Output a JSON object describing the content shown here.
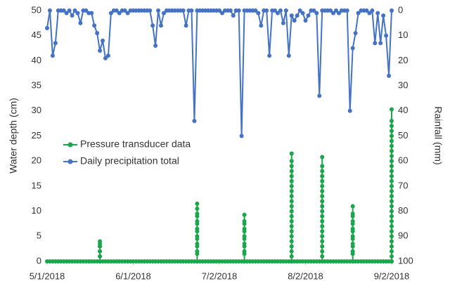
{
  "chart_data": {
    "type": "line",
    "xlabel": null,
    "ylabel": "Water depth (cm)",
    "y2label": "Rainfall (mm)",
    "xlim": [
      "5/1/2018",
      "9/2/2018"
    ],
    "xticks": [
      "5/1/2018",
      "6/1/2018",
      "7/2/2018",
      "8/2/2018",
      "9/2/2018"
    ],
    "ylim": [
      0,
      50
    ],
    "yticks": [
      0,
      5,
      10,
      15,
      20,
      25,
      30,
      35,
      40,
      45,
      50
    ],
    "y2lim": [
      100,
      0
    ],
    "y2ticks": [
      0,
      10,
      20,
      30,
      40,
      50,
      60,
      70,
      80,
      90,
      100
    ],
    "grid": false,
    "legend": "center-left",
    "series": [
      {
        "name": "Pressure transducer data",
        "color": "#1aa64a",
        "axis": "y",
        "x": [
          "5/1/2018",
          "5/2/2018",
          "5/3/2018",
          "5/4/2018",
          "5/5/2018",
          "5/6/2018",
          "5/7/2018",
          "5/8/2018",
          "5/9/2018",
          "5/10/2018",
          "5/11/2018",
          "5/12/2018",
          "5/13/2018",
          "5/14/2018",
          "5/15/2018",
          "5/16/2018",
          "5/17/2018",
          "5/18/2018",
          "5/19/2018",
          "5/20/2018",
          "5/20/2018",
          "5/20/2018",
          "5/20/2018",
          "5/20/2018",
          "5/20/2018",
          "5/20/2018",
          "5/20/2018",
          "5/20/2018",
          "5/20/2018",
          "5/21/2018",
          "5/22/2018",
          "5/23/2018",
          "5/24/2018",
          "5/25/2018",
          "5/26/2018",
          "5/27/2018",
          "5/28/2018",
          "5/29/2018",
          "5/30/2018",
          "5/31/2018",
          "6/1/2018",
          "6/2/2018",
          "6/3/2018",
          "6/4/2018",
          "6/5/2018",
          "6/6/2018",
          "6/7/2018",
          "6/8/2018",
          "6/9/2018",
          "6/10/2018",
          "6/11/2018",
          "6/12/2018",
          "6/13/2018",
          "6/14/2018",
          "6/15/2018",
          "6/16/2018",
          "6/17/2018",
          "6/18/2018",
          "6/19/2018",
          "6/20/2018",
          "6/21/2018",
          "6/22/2018",
          "6/23/2018",
          "6/24/2018",
          "6/24/2018",
          "6/24/2018",
          "6/24/2018",
          "6/24/2018",
          "6/24/2018",
          "6/24/2018",
          "6/24/2018",
          "6/24/2018",
          "6/24/2018",
          "6/24/2018",
          "6/24/2018",
          "6/24/2018",
          "6/24/2018",
          "6/24/2018",
          "6/24/2018",
          "6/25/2018",
          "6/26/2018",
          "6/27/2018",
          "6/28/2018",
          "6/29/2018",
          "6/30/2018",
          "7/1/2018",
          "7/2/2018",
          "7/3/2018",
          "7/4/2018",
          "7/5/2018",
          "7/6/2018",
          "7/7/2018",
          "7/8/2018",
          "7/9/2018",
          "7/10/2018",
          "7/11/2018",
          "7/11/2018",
          "7/11/2018",
          "7/11/2018",
          "7/11/2018",
          "7/11/2018",
          "7/11/2018",
          "7/11/2018",
          "7/11/2018",
          "7/11/2018",
          "7/11/2018",
          "7/11/2018",
          "7/11/2018",
          "7/12/2018",
          "7/13/2018",
          "7/14/2018",
          "7/15/2018",
          "7/16/2018",
          "7/17/2018",
          "7/18/2018",
          "7/19/2018",
          "7/20/2018",
          "7/21/2018",
          "7/22/2018",
          "7/23/2018",
          "7/24/2018",
          "7/25/2018",
          "7/26/2018",
          "7/27/2018",
          "7/28/2018",
          "7/28/2018",
          "7/28/2018",
          "7/28/2018",
          "7/28/2018",
          "7/28/2018",
          "7/28/2018",
          "7/28/2018",
          "7/28/2018",
          "7/28/2018",
          "7/28/2018",
          "7/28/2018",
          "7/28/2018",
          "7/28/2018",
          "7/28/2018",
          "7/28/2018",
          "7/28/2018",
          "7/28/2018",
          "7/28/2018",
          "7/28/2018",
          "7/28/2018",
          "7/28/2018",
          "7/28/2018",
          "7/29/2018",
          "7/30/2018",
          "7/31/2018",
          "8/1/2018",
          "8/2/2018",
          "8/3/2018",
          "8/4/2018",
          "8/5/2018",
          "8/6/2018",
          "8/7/2018",
          "8/8/2018",
          "8/8/2018",
          "8/8/2018",
          "8/8/2018",
          "8/8/2018",
          "8/8/2018",
          "8/8/2018",
          "8/8/2018",
          "8/8/2018",
          "8/8/2018",
          "8/8/2018",
          "8/8/2018",
          "8/8/2018",
          "8/8/2018",
          "8/8/2018",
          "8/8/2018",
          "8/8/2018",
          "8/8/2018",
          "8/8/2018",
          "8/8/2018",
          "8/8/2018",
          "8/8/2018",
          "8/9/2018",
          "8/10/2018",
          "8/11/2018",
          "8/12/2018",
          "8/13/2018",
          "8/14/2018",
          "8/15/2018",
          "8/16/2018",
          "8/17/2018",
          "8/18/2018",
          "8/19/2018",
          "8/19/2018",
          "8/19/2018",
          "8/19/2018",
          "8/19/2018",
          "8/19/2018",
          "8/19/2018",
          "8/19/2018",
          "8/19/2018",
          "8/19/2018",
          "8/19/2018",
          "8/19/2018",
          "8/19/2018",
          "8/19/2018",
          "8/19/2018",
          "8/20/2018",
          "8/21/2018",
          "8/22/2018",
          "8/23/2018",
          "8/24/2018",
          "8/25/2018",
          "8/26/2018",
          "8/27/2018",
          "8/28/2018",
          "8/29/2018",
          "8/30/2018",
          "8/31/2018",
          "9/1/2018",
          "9/2/2018",
          "9/2/2018",
          "9/2/2018",
          "9/2/2018",
          "9/2/2018",
          "9/2/2018",
          "9/2/2018",
          "9/2/2018",
          "9/2/2018",
          "9/2/2018",
          "9/2/2018",
          "9/2/2018",
          "9/2/2018",
          "9/2/2018",
          "9/2/2018",
          "9/2/2018",
          "9/2/2018",
          "9/2/2018",
          "9/2/2018",
          "9/2/2018",
          "9/2/2018",
          "9/2/2018",
          "9/2/2018",
          "9/2/2018",
          "9/2/2018",
          "9/2/2018",
          "9/2/2018",
          "9/2/2018",
          "9/2/2018",
          "9/2/2018",
          "9/2/2018"
        ],
        "values": [
          0,
          0,
          0,
          0,
          0,
          0,
          0,
          0,
          0,
          0,
          0,
          0,
          0,
          0,
          0,
          0,
          0,
          0,
          0,
          0,
          1,
          2,
          3,
          4,
          3.5,
          3,
          2,
          1,
          0,
          0,
          0,
          0,
          0,
          0,
          0,
          0,
          0,
          0,
          0,
          0,
          0,
          0,
          0,
          0,
          0,
          0,
          0,
          0,
          0,
          0,
          0,
          0,
          0,
          0,
          0,
          0,
          0,
          0,
          0,
          0,
          0,
          0,
          0,
          0,
          1.5,
          3,
          4.5,
          6,
          7.5,
          9,
          10.5,
          11.5,
          9.5,
          8,
          6.5,
          5,
          3.5,
          2,
          0,
          0,
          0,
          0,
          0,
          0,
          0,
          0,
          0,
          0,
          0,
          0,
          0,
          0,
          0,
          0,
          0,
          0,
          1.5,
          3,
          4.5,
          6,
          7.5,
          9.3,
          8,
          6.5,
          5,
          3.5,
          2,
          0,
          0,
          0,
          0,
          0,
          0,
          0,
          0,
          0,
          0,
          0,
          0,
          0,
          0,
          0,
          0,
          0,
          0,
          2,
          4,
          6,
          8,
          10,
          12,
          14,
          16,
          18,
          20,
          21.5,
          19,
          17,
          15,
          13,
          11,
          9,
          7,
          5,
          3,
          1,
          0,
          0,
          0,
          0,
          0,
          0,
          0,
          0,
          0,
          0,
          0,
          0,
          2,
          4,
          6,
          8,
          10,
          12,
          14,
          16,
          18,
          20.8,
          19,
          17,
          15,
          13,
          11,
          9,
          7,
          5,
          3,
          1,
          0,
          0,
          0,
          0,
          0,
          0,
          0,
          0,
          0,
          0,
          0,
          0,
          1.5,
          3,
          4.5,
          6,
          7.5,
          9,
          11,
          9.5,
          8,
          6.5,
          5,
          3.5,
          2,
          0,
          0,
          0,
          0,
          0,
          0,
          0,
          0,
          0,
          0,
          0,
          0,
          0,
          0,
          0,
          2,
          4,
          6,
          8,
          10,
          12,
          14,
          16,
          18,
          20,
          22,
          24,
          26,
          28,
          30.3,
          27,
          25,
          23,
          21,
          19,
          17,
          15,
          13,
          11,
          9,
          7,
          5,
          3,
          1,
          0
        ]
      },
      {
        "name": "Daily precipitation total",
        "color": "#4472c4",
        "axis": "y2",
        "x": [
          "5/1/2018",
          "5/2/2018",
          "5/3/2018",
          "5/4/2018",
          "5/5/2018",
          "5/6/2018",
          "5/7/2018",
          "5/8/2018",
          "5/9/2018",
          "5/10/2018",
          "5/11/2018",
          "5/12/2018",
          "5/13/2018",
          "5/14/2018",
          "5/15/2018",
          "5/16/2018",
          "5/17/2018",
          "5/18/2018",
          "5/19/2018",
          "5/20/2018",
          "5/21/2018",
          "5/22/2018",
          "5/23/2018",
          "5/24/2018",
          "5/25/2018",
          "5/26/2018",
          "5/27/2018",
          "5/28/2018",
          "5/29/2018",
          "5/30/2018",
          "5/31/2018",
          "6/1/2018",
          "6/2/2018",
          "6/3/2018",
          "6/4/2018",
          "6/5/2018",
          "6/6/2018",
          "6/7/2018",
          "6/8/2018",
          "6/9/2018",
          "6/10/2018",
          "6/11/2018",
          "6/12/2018",
          "6/13/2018",
          "6/14/2018",
          "6/15/2018",
          "6/16/2018",
          "6/17/2018",
          "6/18/2018",
          "6/19/2018",
          "6/20/2018",
          "6/21/2018",
          "6/22/2018",
          "6/23/2018",
          "6/24/2018",
          "6/25/2018",
          "6/26/2018",
          "6/27/2018",
          "6/28/2018",
          "6/29/2018",
          "6/30/2018",
          "7/1/2018",
          "7/2/2018",
          "7/3/2018",
          "7/4/2018",
          "7/5/2018",
          "7/6/2018",
          "7/7/2018",
          "7/8/2018",
          "7/9/2018",
          "7/10/2018",
          "7/11/2018",
          "7/12/2018",
          "7/13/2018",
          "7/14/2018",
          "7/15/2018",
          "7/16/2018",
          "7/17/2018",
          "7/18/2018",
          "7/19/2018",
          "7/20/2018",
          "7/21/2018",
          "7/22/2018",
          "7/23/2018",
          "7/24/2018",
          "7/25/2018",
          "7/26/2018",
          "7/27/2018",
          "7/28/2018",
          "7/29/2018",
          "7/30/2018",
          "7/31/2018",
          "8/1/2018",
          "8/2/2018",
          "8/3/2018",
          "8/4/2018",
          "8/5/2018",
          "8/6/2018",
          "8/7/2018",
          "8/8/2018",
          "8/9/2018",
          "8/10/2018",
          "8/11/2018",
          "8/12/2018",
          "8/13/2018",
          "8/14/2018",
          "8/15/2018",
          "8/16/2018",
          "8/17/2018",
          "8/18/2018",
          "8/19/2018",
          "8/20/2018",
          "8/21/2018",
          "8/22/2018",
          "8/23/2018",
          "8/24/2018",
          "8/25/2018",
          "8/26/2018",
          "8/27/2018",
          "8/28/2018",
          "8/29/2018",
          "8/30/2018",
          "8/31/2018",
          "9/1/2018",
          "9/2/2018"
        ],
        "values": [
          7,
          0,
          18,
          13,
          0,
          0,
          0,
          1,
          0,
          2,
          0,
          1,
          5,
          0,
          0,
          1,
          1,
          6,
          9,
          16,
          12,
          19,
          18,
          1,
          0,
          0,
          1,
          0,
          0,
          1,
          0,
          0,
          0,
          0,
          0,
          0,
          0,
          0,
          6,
          14,
          0,
          6,
          1,
          0,
          0,
          0,
          0,
          0,
          0,
          0,
          6,
          0,
          0,
          44,
          0,
          0,
          0,
          0,
          0,
          0,
          0,
          0,
          0,
          1,
          0,
          0,
          0,
          2,
          0,
          0,
          50,
          0,
          0,
          0,
          0,
          0,
          1,
          6,
          0,
          0,
          18,
          0,
          0,
          1,
          0,
          5,
          0,
          18,
          2,
          4,
          2,
          0,
          1,
          4,
          2,
          0,
          0,
          1,
          34,
          0,
          0,
          0,
          0,
          1,
          0,
          1,
          0,
          0,
          0,
          40,
          15,
          9,
          1,
          0,
          0,
          0,
          1,
          0,
          13,
          1,
          13,
          2,
          10,
          26,
          0
        ]
      }
    ]
  }
}
